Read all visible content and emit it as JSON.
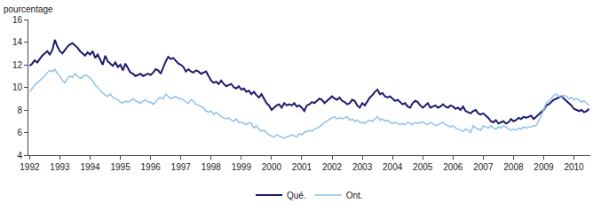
{
  "chart_data": {
    "type": "line",
    "y_label": "pourcentage",
    "categories": [
      "1992",
      null,
      null,
      null,
      null,
      null,
      null,
      null,
      null,
      null,
      null,
      null,
      "1993",
      null,
      null,
      null,
      null,
      null,
      null,
      null,
      null,
      null,
      null,
      null,
      "1994",
      null,
      null,
      null,
      null,
      null,
      null,
      null,
      null,
      null,
      null,
      null,
      "1995",
      null,
      null,
      null,
      null,
      null,
      null,
      null,
      null,
      null,
      null,
      null,
      "1996",
      null,
      null,
      null,
      null,
      null,
      null,
      null,
      null,
      null,
      null,
      null,
      "1997",
      null,
      null,
      null,
      null,
      null,
      null,
      null,
      null,
      null,
      null,
      null,
      "1998",
      null,
      null,
      null,
      null,
      null,
      null,
      null,
      null,
      null,
      null,
      null,
      "1999",
      null,
      null,
      null,
      null,
      null,
      null,
      null,
      null,
      null,
      null,
      null,
      "2000",
      null,
      null,
      null,
      null,
      null,
      null,
      null,
      null,
      null,
      null,
      null,
      "2001",
      null,
      null,
      null,
      null,
      null,
      null,
      null,
      null,
      null,
      null,
      null,
      "2002",
      null,
      null,
      null,
      null,
      null,
      null,
      null,
      null,
      null,
      null,
      null,
      "2003",
      null,
      null,
      null,
      null,
      null,
      null,
      null,
      null,
      null,
      null,
      null,
      "2004",
      null,
      null,
      null,
      null,
      null,
      null,
      null,
      null,
      null,
      null,
      null,
      "2005",
      null,
      null,
      null,
      null,
      null,
      null,
      null,
      null,
      null,
      null,
      null,
      "2006",
      null,
      null,
      null,
      null,
      null,
      null,
      null,
      null,
      null,
      null,
      null,
      "2007",
      null,
      null,
      null,
      null,
      null,
      null,
      null,
      null,
      null,
      null,
      null,
      "2008",
      null,
      null,
      null,
      null,
      null,
      null,
      null,
      null,
      null,
      null,
      null,
      "2009",
      null,
      null,
      null,
      null,
      null,
      null,
      null,
      null,
      null,
      null,
      null,
      "2010",
      null,
      null,
      null,
      null,
      null,
      null
    ],
    "series": [
      {
        "name": "Qué.",
        "color": "#1b1b6b",
        "values": [
          11.9,
          12.1,
          12.4,
          12.2,
          12.5,
          12.8,
          13.0,
          13.2,
          12.9,
          13.3,
          14.2,
          13.6,
          13.2,
          13.0,
          13.3,
          13.6,
          13.8,
          13.9,
          13.7,
          13.5,
          13.2,
          13.0,
          12.8,
          13.1,
          12.9,
          13.2,
          12.6,
          12.9,
          12.4,
          12.0,
          12.8,
          12.3,
          12.1,
          11.9,
          12.2,
          11.8,
          12.0,
          11.5,
          12.1,
          11.7,
          11.3,
          11.2,
          11.0,
          11.1,
          11.2,
          11.0,
          11.1,
          11.2,
          11.1,
          11.3,
          11.6,
          11.5,
          11.2,
          11.8,
          12.3,
          12.7,
          12.5,
          12.6,
          12.3,
          12.1,
          12.0,
          11.8,
          11.4,
          11.6,
          11.4,
          11.3,
          11.5,
          11.4,
          11.2,
          11.3,
          11.4,
          11.0,
          10.6,
          10.4,
          10.5,
          10.3,
          10.6,
          10.3,
          10.1,
          10.2,
          10.3,
          10.0,
          9.9,
          10.1,
          9.8,
          9.9,
          9.6,
          9.7,
          9.4,
          9.6,
          9.3,
          9.1,
          9.4,
          9.0,
          8.6,
          8.4,
          8.0,
          8.2,
          8.4,
          8.5,
          8.2,
          8.6,
          8.4,
          8.5,
          8.4,
          8.6,
          8.3,
          8.4,
          8.2,
          7.9,
          8.4,
          8.5,
          8.7,
          8.6,
          8.8,
          9.0,
          8.9,
          8.6,
          8.8,
          9.0,
          9.2,
          9.0,
          8.9,
          9.1,
          8.8,
          8.7,
          8.5,
          8.6,
          8.9,
          8.8,
          8.4,
          8.2,
          8.6,
          8.4,
          8.8,
          9.1,
          9.3,
          9.6,
          9.8,
          9.4,
          9.5,
          9.2,
          9.1,
          9.2,
          9.0,
          8.8,
          8.9,
          8.7,
          8.5,
          8.6,
          8.3,
          8.2,
          8.6,
          8.8,
          8.7,
          8.4,
          8.2,
          8.4,
          8.6,
          8.2,
          8.3,
          8.4,
          8.2,
          8.3,
          8.5,
          8.3,
          8.2,
          8.4,
          8.3,
          8.1,
          8.2,
          8.0,
          8.3,
          7.9,
          7.8,
          7.7,
          7.9,
          8.0,
          7.7,
          7.6,
          7.7,
          7.5,
          7.3,
          7.0,
          6.9,
          7.1,
          6.8,
          6.9,
          7.0,
          6.8,
          6.9,
          7.2,
          7.0,
          7.1,
          7.3,
          7.2,
          7.4,
          7.3,
          7.4,
          7.5,
          7.2,
          7.4,
          7.6,
          7.8,
          8.0,
          8.4,
          8.5,
          8.7,
          8.9,
          9.0,
          9.1,
          9.2,
          9.0,
          8.8,
          8.6,
          8.4,
          8.1,
          8.0,
          7.9,
          8.0,
          7.8,
          7.9,
          8.1
        ]
      },
      {
        "name": "Ont.",
        "color": "#8fc1e8",
        "values": [
          9.6,
          9.9,
          10.2,
          10.4,
          10.6,
          10.8,
          11.0,
          11.3,
          11.5,
          11.4,
          11.6,
          11.2,
          11.0,
          10.6,
          10.4,
          10.8,
          11.0,
          10.9,
          11.2,
          11.0,
          10.8,
          10.9,
          11.1,
          11.0,
          10.8,
          10.6,
          10.2,
          10.0,
          9.7,
          9.5,
          9.3,
          9.2,
          9.4,
          9.1,
          9.0,
          8.9,
          8.7,
          8.6,
          8.8,
          8.7,
          8.8,
          9.0,
          8.8,
          8.7,
          8.6,
          8.8,
          8.9,
          8.7,
          8.7,
          8.5,
          8.7,
          9.0,
          9.1,
          9.0,
          9.4,
          9.2,
          9.0,
          9.1,
          9.2,
          9.0,
          9.0,
          8.9,
          8.7,
          8.6,
          8.9,
          8.8,
          8.5,
          8.4,
          8.3,
          8.2,
          7.9,
          7.8,
          7.9,
          7.6,
          7.8,
          7.6,
          7.4,
          7.3,
          7.2,
          7.3,
          7.1,
          7.0,
          7.2,
          6.9,
          6.9,
          6.8,
          6.7,
          6.9,
          6.8,
          6.4,
          6.6,
          6.3,
          6.1,
          6.2,
          6.0,
          5.8,
          5.7,
          5.6,
          5.8,
          5.7,
          5.6,
          5.5,
          5.6,
          5.7,
          5.8,
          5.7,
          5.6,
          5.9,
          5.8,
          6.0,
          6.1,
          6.2,
          6.1,
          6.3,
          6.4,
          6.5,
          6.7,
          6.9,
          7.0,
          7.2,
          7.3,
          7.4,
          7.2,
          7.3,
          7.2,
          7.3,
          7.4,
          7.1,
          7.2,
          7.0,
          7.1,
          6.9,
          6.9,
          6.8,
          7.0,
          7.1,
          7.0,
          7.2,
          7.4,
          7.1,
          7.2,
          7.0,
          7.1,
          6.9,
          6.8,
          6.9,
          6.8,
          6.7,
          6.8,
          6.7,
          6.9,
          6.8,
          6.7,
          6.9,
          6.8,
          6.9,
          6.9,
          6.8,
          6.7,
          6.9,
          6.8,
          6.6,
          6.7,
          6.8,
          6.9,
          6.7,
          6.6,
          6.5,
          6.6,
          6.4,
          6.3,
          6.2,
          6.1,
          6.3,
          6.2,
          6.0,
          6.6,
          6.4,
          6.3,
          6.2,
          6.6,
          6.5,
          6.4,
          6.6,
          6.4,
          6.3,
          6.5,
          6.4,
          6.6,
          6.5,
          6.3,
          6.2,
          6.3,
          6.2,
          6.4,
          6.3,
          6.5,
          6.4,
          6.5,
          6.5,
          6.6,
          6.6,
          7.0,
          7.5,
          8.0,
          8.6,
          8.8,
          9.0,
          9.3,
          9.4,
          9.2,
          9.1,
          9.3,
          9.2,
          9.0,
          9.1,
          8.9,
          9.0,
          8.9,
          8.7,
          8.8,
          8.6,
          8.4
        ]
      }
    ],
    "ylim": [
      4,
      16
    ],
    "yticks": [
      4,
      6,
      8,
      10,
      12,
      14,
      16
    ],
    "grid": false,
    "legend": "bottom"
  }
}
